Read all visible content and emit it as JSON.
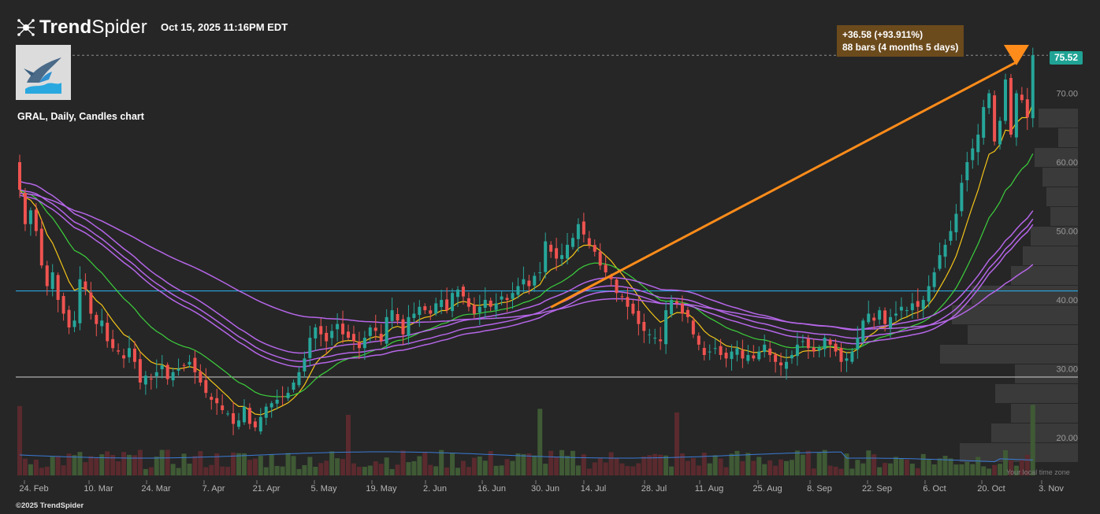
{
  "brand": {
    "name_bold": "Trend",
    "name_light": "Spider",
    "icon": "trendspider-logo-icon"
  },
  "timestamp": "Oct 15, 2025 11:16PM EDT",
  "logo": "marlin-logo",
  "copyright": "©2025 TrendSpider",
  "local_time_label": "Your local time zone",
  "measure_tooltip": {
    "line1": "+36.58 (+93.911%)",
    "line2": "88 bars (4 months 5 days)"
  },
  "current_price_label": "75.52",
  "colors": {
    "up": "#26a69a",
    "down": "#ef5350",
    "ema_fast": "#f5c518",
    "ema_mid": "#3cd03c",
    "bands": "#b566e8",
    "measure": "#ff8c1a",
    "level_line": "#29b6f6"
  },
  "chart_data": {
    "type": "candlestick",
    "title": "GRAL, Daily, Candles chart",
    "symbol": "GRAL",
    "timeframe": "Daily",
    "x_tick_labels": [
      "24. Feb",
      "10. Mar",
      "24. Mar",
      "7. Apr",
      "21. Apr",
      "5. May",
      "19. May",
      "2. Jun",
      "16. Jun",
      "30. Jun",
      "14. Jul",
      "28. Jul",
      "11. Aug",
      "25. Aug",
      "8. Sep",
      "22. Sep",
      "6. Oct",
      "20. Oct",
      "3. Nov"
    ],
    "y_tick_labels": [
      "20.00",
      "30.00",
      "40.00",
      "50.00",
      "60.00",
      "70.00"
    ],
    "y_ticks": [
      20,
      30,
      40,
      50,
      60,
      70
    ],
    "ylim": [
      15.2,
      80.2
    ],
    "current_price": 75.52,
    "horizontal_levels": [
      {
        "value": 41.3,
        "color": "#29b6f6"
      },
      {
        "value": 28.8,
        "color": "#d0d0d0"
      }
    ],
    "measure": {
      "from": 38.94,
      "to": 75.52,
      "change": 36.58,
      "change_pct": 93.911,
      "bars": 88
    },
    "candles_close": [
      56.0,
      51.0,
      53.0,
      50.0,
      45.0,
      42.0,
      44.0,
      40.0,
      38.0,
      36.0,
      37.0,
      43.0,
      41.5,
      38.0,
      36.5,
      37.0,
      34.0,
      33.0,
      32.5,
      31.5,
      33.0,
      31.0,
      28.0,
      29.0,
      28.5,
      29.5,
      30.5,
      28.5,
      29.5,
      30.0,
      30.5,
      31.0,
      29.5,
      28.0,
      26.5,
      25.5,
      25.0,
      24.0,
      23.5,
      22.0,
      22.5,
      24.5,
      22.0,
      21.5,
      23.0,
      24.5,
      25.0,
      25.5,
      26.0,
      26.5,
      28.0,
      29.5,
      31.5,
      34.5,
      36.0,
      35.0,
      34.0,
      35.5,
      36.5,
      35.0,
      34.5,
      34.0,
      33.0,
      34.5,
      36.0,
      35.5,
      34.0,
      37.5,
      38.5,
      37.0,
      35.0,
      37.5,
      38.0,
      39.0,
      38.5,
      38.0,
      39.5,
      40.0,
      38.5,
      41.0,
      41.5,
      40.5,
      39.0,
      38.0,
      39.0,
      40.0,
      39.0,
      39.5,
      40.5,
      40.0,
      41.0,
      42.0,
      43.0,
      42.0,
      43.5,
      44.0,
      48.5,
      47.0,
      46.0,
      46.5,
      48.0,
      49.0,
      51.0,
      49.5,
      48.0,
      47.0,
      45.0,
      44.0,
      43.0,
      41.0,
      40.5,
      39.0,
      38.0,
      36.5,
      35.5,
      35.0,
      34.5,
      34.0,
      38.5,
      40.0,
      39.5,
      38.0,
      37.5,
      35.0,
      33.5,
      32.0,
      32.5,
      33.0,
      32.0,
      31.5,
      32.5,
      33.0,
      31.5,
      32.0,
      31.5,
      32.5,
      33.5,
      32.0,
      31.0,
      30.5,
      31.0,
      32.0,
      33.5,
      34.0,
      33.0,
      32.5,
      33.0,
      34.5,
      33.5,
      32.5,
      31.0,
      31.5,
      32.5,
      34.5,
      37.0,
      38.0,
      37.0,
      38.5,
      36.5,
      37.5,
      38.0,
      39.0,
      38.5,
      39.5,
      39.0,
      40.0,
      42.0,
      44.0,
      46.5,
      48.0,
      50.0,
      52.5,
      57.0,
      60.0,
      62.0,
      64.0,
      68.0,
      70.0,
      63.0,
      66.0,
      72.0,
      64.0,
      70.0,
      69.0,
      66.5,
      75.52
    ],
    "indicators": [
      {
        "name": "EMA fast",
        "color": "#f5c518"
      },
      {
        "name": "EMA mid",
        "color": "#3cd03c"
      },
      {
        "name": "Band 1",
        "color": "#b566e8"
      },
      {
        "name": "Band 2",
        "color": "#b566e8"
      },
      {
        "name": "Band 3",
        "color": "#b566e8"
      },
      {
        "name": "Band 4",
        "color": "#b566e8"
      }
    ],
    "grid": false,
    "volume_panel": true,
    "volume_profile": true
  }
}
